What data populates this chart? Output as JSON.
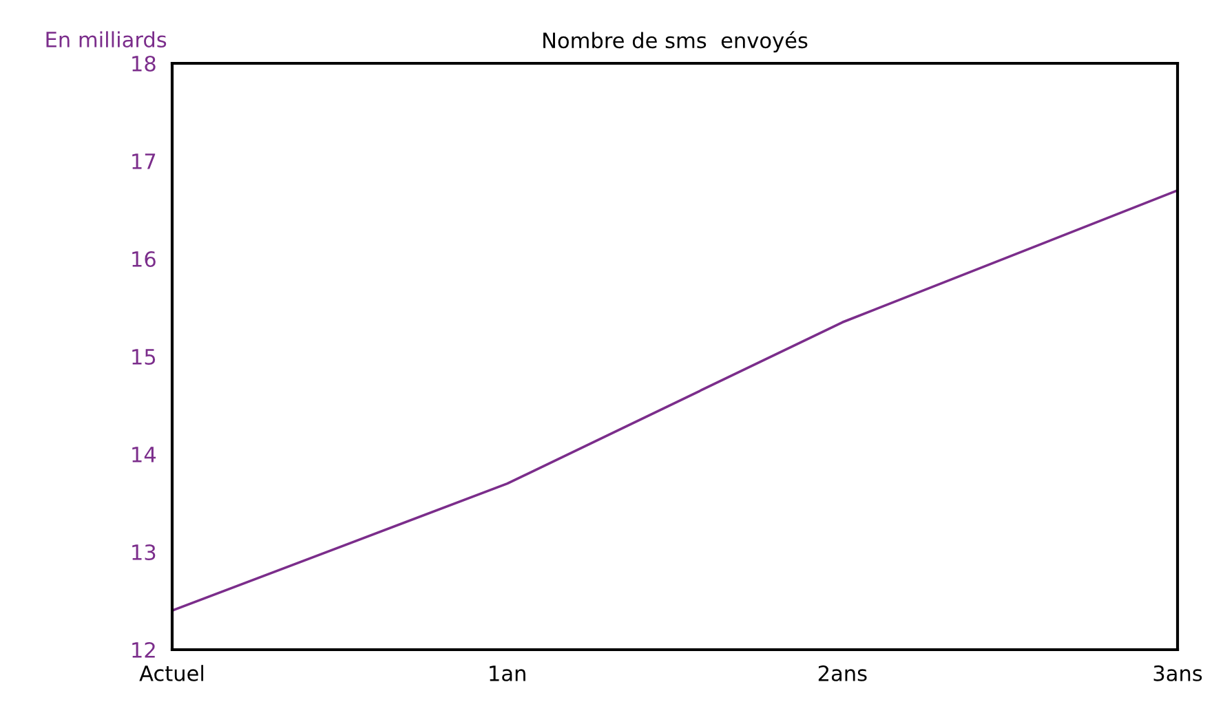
{
  "chart_data": {
    "type": "line",
    "title": "Nombre de sms  envoyés",
    "ylabel": "En milliards",
    "categories": [
      "Actuel",
      "1an",
      "2ans",
      "3ans"
    ],
    "series": [
      {
        "color": "#7b2d8b",
        "values": [
          12.4,
          13.7,
          15.35,
          16.7
        ]
      }
    ],
    "ylim": [
      12,
      18
    ],
    "yticks": [
      12,
      13,
      14,
      15,
      16,
      17,
      18
    ],
    "grid": false,
    "legend": false,
    "marker": "none",
    "line_style": "solid"
  }
}
